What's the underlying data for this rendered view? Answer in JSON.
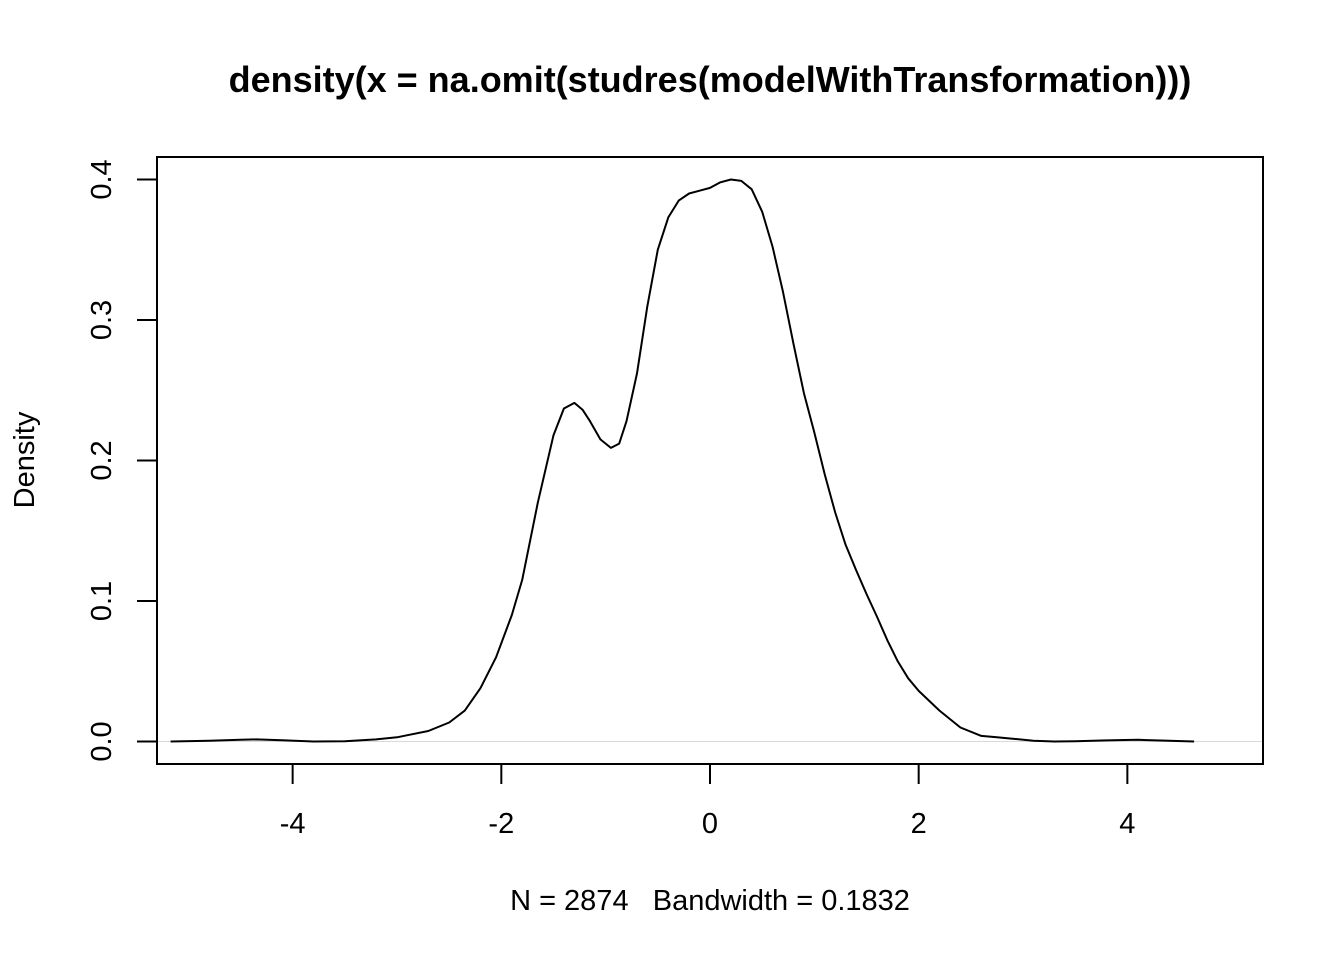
{
  "chart_data": {
    "type": "line",
    "title": "density(x = na.omit(studres(modelWithTransformation)))",
    "xlabel": "N = 2874   Bandwidth = 0.1832",
    "ylabel": "Density",
    "xlim": [
      -5.3,
      5.3
    ],
    "ylim": [
      -0.016,
      0.416
    ],
    "x_ticks": [
      -4,
      -2,
      0,
      2,
      4
    ],
    "x_tick_labels": [
      "-4",
      "-2",
      "0",
      "2",
      "4"
    ],
    "y_ticks": [
      0.0,
      0.1,
      0.2,
      0.3,
      0.4
    ],
    "y_tick_labels": [
      "0.0",
      "0.1",
      "0.2",
      "0.3",
      "0.4"
    ],
    "grid": false,
    "reference_line_y": 0,
    "reference_line_color": "#d9d9d9",
    "line_color": "#000000",
    "series": [
      {
        "x": [
          -5.17,
          -4.8,
          -4.5,
          -4.35,
          -4.1,
          -3.8,
          -3.5,
          -3.2,
          -3.0,
          -2.9,
          -2.7,
          -2.5,
          -2.35,
          -2.2,
          -2.05,
          -1.9,
          -1.8,
          -1.65,
          -1.5,
          -1.4,
          -1.3,
          -1.22,
          -1.15,
          -1.05,
          -0.95,
          -0.87,
          -0.8,
          -0.7,
          -0.6,
          -0.5,
          -0.4,
          -0.3,
          -0.2,
          -0.1,
          0.0,
          0.1,
          0.2,
          0.3,
          0.4,
          0.5,
          0.6,
          0.7,
          0.8,
          0.9,
          1.0,
          1.1,
          1.2,
          1.3,
          1.4,
          1.5,
          1.6,
          1.7,
          1.8,
          1.9,
          2.0,
          2.2,
          2.4,
          2.6,
          2.75,
          2.9,
          3.1,
          3.3,
          3.5,
          3.8,
          4.1,
          4.4,
          4.64
        ],
        "values": [
          0.0,
          0.0005,
          0.0012,
          0.0015,
          0.0009,
          0.0,
          0.0002,
          0.0015,
          0.003,
          0.0045,
          0.0075,
          0.0135,
          0.022,
          0.038,
          0.06,
          0.09,
          0.115,
          0.17,
          0.218,
          0.237,
          0.241,
          0.236,
          0.228,
          0.215,
          0.209,
          0.212,
          0.228,
          0.262,
          0.31,
          0.35,
          0.373,
          0.385,
          0.39,
          0.392,
          0.394,
          0.398,
          0.4,
          0.399,
          0.393,
          0.377,
          0.352,
          0.32,
          0.283,
          0.248,
          0.22,
          0.19,
          0.163,
          0.14,
          0.122,
          0.105,
          0.089,
          0.072,
          0.057,
          0.045,
          0.036,
          0.022,
          0.01,
          0.004,
          0.003,
          0.002,
          0.0005,
          0.0,
          0.0002,
          0.0008,
          0.0012,
          0.0005,
          0.0
        ]
      }
    ]
  }
}
